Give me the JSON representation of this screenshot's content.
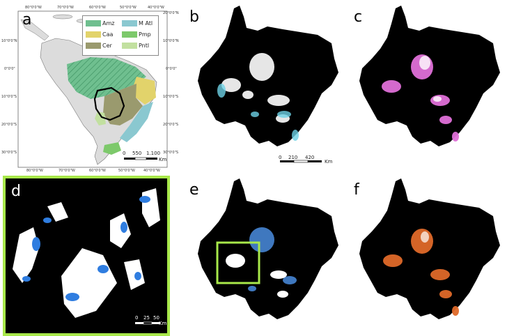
{
  "panels": {
    "a": {
      "letter": "a",
      "legend": [
        {
          "label": "Amz",
          "color": "#6fbf8f"
        },
        {
          "label": "M Atl",
          "color": "#8ac8d0"
        },
        {
          "label": "Caa",
          "color": "#e2d36b"
        },
        {
          "label": "Pmp",
          "color": "#7dc96b"
        },
        {
          "label": "Cer",
          "color": "#9a9a6e"
        },
        {
          "label": "Pntl",
          "color": "#c2e0a0"
        }
      ],
      "top_ticks": [
        "80°0'0\"W",
        "70°0'0\"W",
        "60°0'0\"W",
        "50°0'0\"W",
        "40°0'0\"W"
      ],
      "bottom_ticks": [
        "80°0'0\"W",
        "70°0'0\"W",
        "60°0'0\"W",
        "50°0'0\"W",
        "40°0'0\"W"
      ],
      "left_ticks": [
        "10°0'0\"N",
        "0°0'0\"",
        "10°0'0\"S",
        "20°0'0\"S",
        "30°0'0\"S"
      ],
      "right_ticks": [
        "20°0'0\"N",
        "10°0'0\"N",
        "0°0'0\"",
        "10°0'0\"S",
        "20°0'0\"S",
        "30°0'0\"S"
      ],
      "scalebar": {
        "values": [
          "0",
          "550",
          "1.100"
        ],
        "unit": "Km"
      }
    },
    "b": {
      "letter": "b",
      "accent": "#6fd3e6",
      "scalebar": {
        "values": [
          "0",
          "210",
          "420"
        ],
        "unit": "Km"
      }
    },
    "c": {
      "letter": "c",
      "accent": "#e070d8"
    },
    "d": {
      "letter": "d",
      "accent": "#2f7de0",
      "border_color": "#a8e84a",
      "scalebar": {
        "values": [
          "0",
          "25",
          "50"
        ],
        "unit": "Km"
      }
    },
    "e": {
      "letter": "e",
      "accent": "#4a8de0",
      "highlight_color": "#a8e84a"
    },
    "f": {
      "letter": "f",
      "accent": "#e06a2a"
    }
  }
}
